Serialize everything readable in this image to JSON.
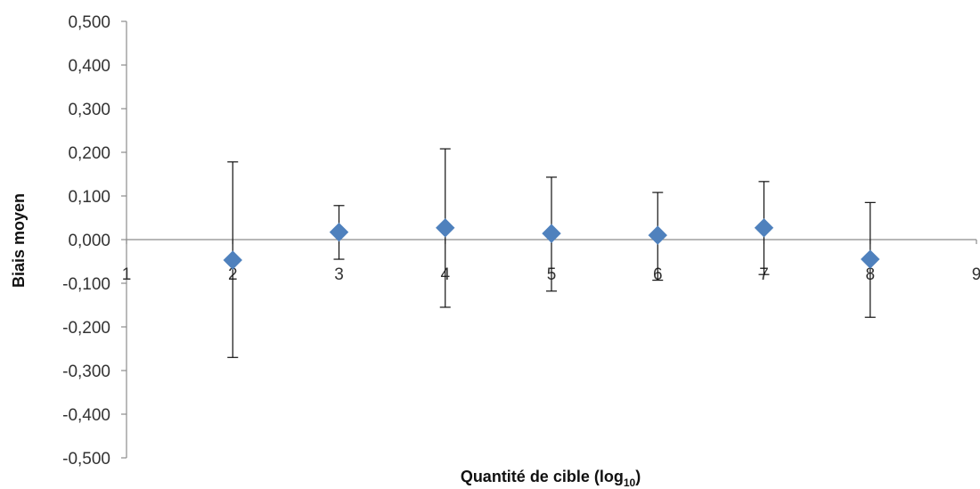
{
  "chart_data": {
    "type": "scatter",
    "xlabel": "Quantité de cible (log",
    "xlabel_subscript": "10",
    "xlabel_suffix": ")",
    "ylabel": "Biais moyen",
    "xlim": [
      1,
      9
    ],
    "ylim": [
      -0.5,
      0.5
    ],
    "x_ticks": [
      "1",
      "2",
      "3",
      "4",
      "5",
      "6",
      "7",
      "8",
      "9"
    ],
    "y_ticks": [
      "0,500",
      "0,400",
      "0,300",
      "0,200",
      "0,100",
      "0,000",
      "-0,100",
      "-0,200",
      "-0,300",
      "-0,400",
      "-0,500"
    ],
    "grid": false,
    "marker": "diamond",
    "series": [
      {
        "color": "#4F81BD",
        "points": [
          {
            "x": 2,
            "y": -0.047,
            "err_low": -0.27,
            "err_high": 0.178
          },
          {
            "x": 3,
            "y": 0.017,
            "err_low": -0.045,
            "err_high": 0.078
          },
          {
            "x": 4,
            "y": 0.027,
            "err_low": -0.155,
            "err_high": 0.208
          },
          {
            "x": 5,
            "y": 0.014,
            "err_low": -0.118,
            "err_high": 0.143
          },
          {
            "x": 6,
            "y": 0.01,
            "err_low": -0.093,
            "err_high": 0.108
          },
          {
            "x": 7,
            "y": 0.027,
            "err_low": -0.08,
            "err_high": 0.133
          },
          {
            "x": 8,
            "y": -0.045,
            "err_low": -0.178,
            "err_high": 0.085
          }
        ]
      }
    ]
  }
}
